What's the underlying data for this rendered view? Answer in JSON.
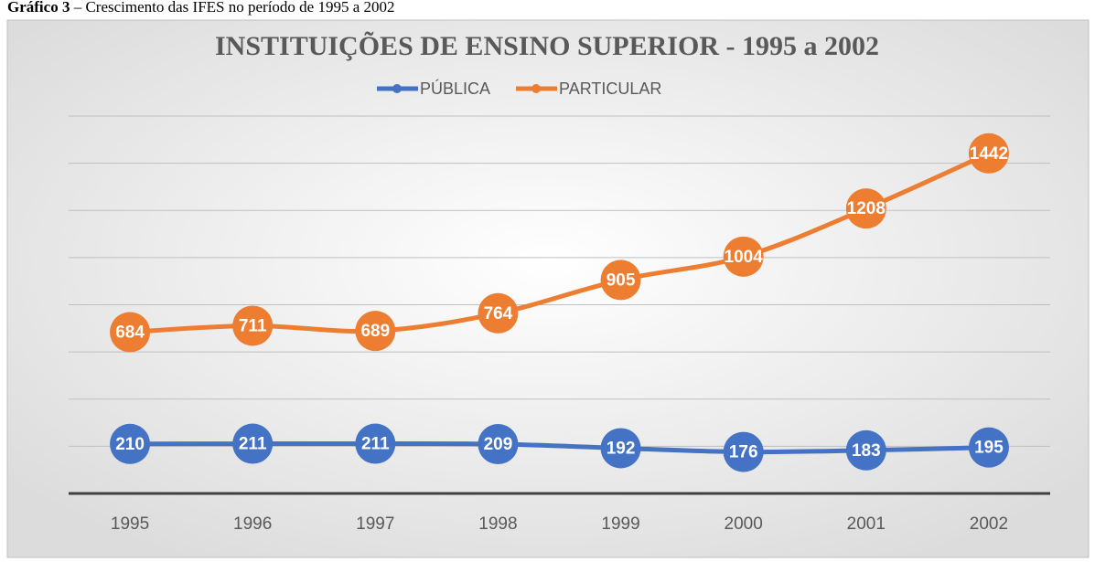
{
  "caption": {
    "label": "Gráfico 3",
    "text": " – Crescimento das IFES no período de 1995 a 2002"
  },
  "chart_data": {
    "type": "line",
    "title": "INSTITUIÇÕES DE ENSINO SUPERIOR - 1995 a 2002",
    "categories": [
      "1995",
      "1996",
      "1997",
      "1998",
      "1999",
      "2000",
      "2001",
      "2002"
    ],
    "series": [
      {
        "name": "PÚBLICA",
        "color": "#4472c4",
        "values": [
          210,
          211,
          211,
          209,
          192,
          176,
          183,
          195
        ]
      },
      {
        "name": "PARTICULAR",
        "color": "#ed7d31",
        "values": [
          684,
          711,
          689,
          764,
          905,
          1004,
          1208,
          1442
        ]
      }
    ],
    "ylim": [
      0,
      1600
    ],
    "yticks": [
      0,
      200,
      400,
      600,
      800,
      1000,
      1200,
      1400,
      1600
    ],
    "show_ytick_labels": false,
    "grid": true,
    "legend": "top",
    "data_labels": true
  }
}
